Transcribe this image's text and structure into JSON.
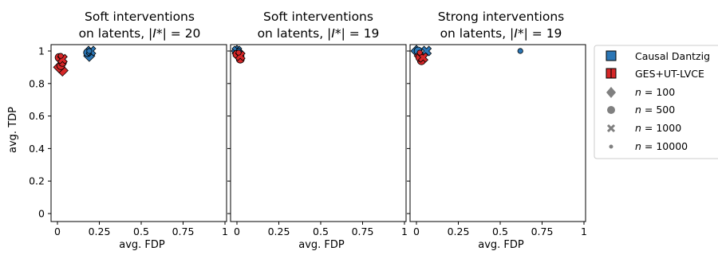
{
  "figure": {
    "shared_xlabel": "avg. FDP",
    "shared_ylabel": "avg. TDP"
  },
  "panels": [
    {
      "title_line1": "Soft interventions",
      "title_line2_prefix": "on latents, |",
      "title_line2_italic": "I",
      "title_line2_suffix": "*| = 20"
    },
    {
      "title_line1": "Soft interventions",
      "title_line2_prefix": "on latents, |",
      "title_line2_italic": "I",
      "title_line2_suffix": "*| = 19"
    },
    {
      "title_line1": "Strong interventions",
      "title_line2_prefix": "on latents, |",
      "title_line2_italic": "I",
      "title_line2_suffix": "*| = 19"
    }
  ],
  "legend": {
    "methods": [
      {
        "label": "Causal Dantzig",
        "color": "#2b76b5"
      },
      {
        "label": "GES+UT-LVCE",
        "color": "#d62728"
      }
    ],
    "sizes": [
      {
        "n": "100",
        "marker": "diamond"
      },
      {
        "n": "500",
        "marker": "circle"
      },
      {
        "n": "1000",
        "marker": "x"
      },
      {
        "n": "10000",
        "marker": "small-circle"
      }
    ],
    "n_prefix": "n",
    "n_equals": " = "
  },
  "chart_data": [
    {
      "type": "scatter",
      "title": "Soft interventions on latents, |I*| = 20",
      "xlabel": "avg. FDP",
      "ylabel": "avg. TDP",
      "xlim": [
        0,
        1
      ],
      "ylim": [
        0,
        1
      ],
      "xticks": [
        "0",
        "0.25",
        "0.5",
        "0.75",
        "1"
      ],
      "yticks": [
        "0",
        "0.2",
        "0.4",
        "0.6",
        "0.8",
        "1"
      ],
      "grid": false,
      "series": [
        {
          "name": "Causal Dantzig",
          "color": "#2b76b5",
          "points": [
            {
              "x": 0.19,
              "y": 0.97,
              "n": "100"
            },
            {
              "x": 0.18,
              "y": 0.99,
              "n": "500"
            },
            {
              "x": 0.2,
              "y": 1.0,
              "n": "1000"
            },
            {
              "x": 0.19,
              "y": 1.0,
              "n": "10000"
            }
          ]
        },
        {
          "name": "GES+UT-LVCE",
          "color": "#d62728",
          "points": [
            {
              "x": 0.03,
              "y": 0.88,
              "n": "100"
            },
            {
              "x": 0.01,
              "y": 0.9,
              "n": "100"
            },
            {
              "x": 0.02,
              "y": 0.91,
              "n": "500"
            },
            {
              "x": 0.03,
              "y": 0.93,
              "n": "500"
            },
            {
              "x": 0.01,
              "y": 0.96,
              "n": "500"
            },
            {
              "x": 0.03,
              "y": 0.95,
              "n": "1000"
            },
            {
              "x": 0.02,
              "y": 0.97,
              "n": "10000"
            }
          ]
        }
      ]
    },
    {
      "type": "scatter",
      "title": "Soft interventions on latents, |I*| = 19",
      "xlabel": "avg. FDP",
      "ylabel": "avg. TDP",
      "xlim": [
        0,
        1
      ],
      "ylim": [
        0,
        1
      ],
      "xticks": [
        "0",
        "0.25",
        "0.5",
        "0.75",
        "1"
      ],
      "yticks": [
        "0",
        "0.2",
        "0.4",
        "0.6",
        "0.8",
        "1"
      ],
      "grid": false,
      "series": [
        {
          "name": "Causal Dantzig",
          "color": "#2b76b5",
          "points": [
            {
              "x": 0.0,
              "y": 1.0,
              "n": "100"
            },
            {
              "x": 0.01,
              "y": 0.99,
              "n": "500"
            },
            {
              "x": 0.0,
              "y": 1.0,
              "n": "1000"
            },
            {
              "x": 0.01,
              "y": 1.0,
              "n": "10000"
            }
          ]
        },
        {
          "name": "GES+UT-LVCE",
          "color": "#d62728",
          "points": [
            {
              "x": 0.01,
              "y": 0.97,
              "n": "100"
            },
            {
              "x": 0.02,
              "y": 0.95,
              "n": "500"
            },
            {
              "x": 0.0,
              "y": 0.98,
              "n": "500"
            },
            {
              "x": 0.02,
              "y": 0.97,
              "n": "1000"
            },
            {
              "x": 0.01,
              "y": 0.99,
              "n": "10000"
            }
          ]
        }
      ]
    },
    {
      "type": "scatter",
      "title": "Strong interventions on latents, |I*| = 19",
      "xlabel": "avg. FDP",
      "ylabel": "avg. TDP",
      "xlim": [
        0,
        1
      ],
      "ylim": [
        0,
        1
      ],
      "xticks": [
        "0",
        "0.25",
        "0.5",
        "0.75",
        "1"
      ],
      "yticks": [
        "0",
        "0.2",
        "0.4",
        "0.6",
        "0.8",
        "1"
      ],
      "grid": false,
      "series": [
        {
          "name": "Causal Dantzig",
          "color": "#2b76b5",
          "points": [
            {
              "x": 0.0,
              "y": 1.0,
              "n": "100"
            },
            {
              "x": 0.01,
              "y": 1.0,
              "n": "500"
            },
            {
              "x": 0.06,
              "y": 1.0,
              "n": "1000"
            },
            {
              "x": 0.62,
              "y": 1.0,
              "n": "10000"
            }
          ]
        },
        {
          "name": "GES+UT-LVCE",
          "color": "#d62728",
          "points": [
            {
              "x": 0.02,
              "y": 0.97,
              "n": "100"
            },
            {
              "x": 0.03,
              "y": 0.94,
              "n": "500"
            },
            {
              "x": 0.02,
              "y": 0.96,
              "n": "500"
            },
            {
              "x": 0.04,
              "y": 0.96,
              "n": "1000"
            },
            {
              "x": 0.02,
              "y": 0.99,
              "n": "10000"
            }
          ]
        }
      ]
    }
  ]
}
